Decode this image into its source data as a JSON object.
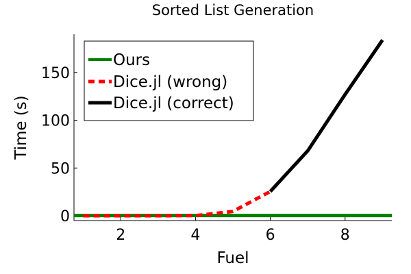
{
  "chart_data": {
    "type": "line",
    "title": "Sorted List Generation",
    "xlabel": "Fuel",
    "ylabel": "Time (s)",
    "xlim": [
      0.75,
      9.25
    ],
    "ylim": [
      -5,
      190
    ],
    "xticks": [
      2,
      4,
      6,
      8
    ],
    "yticks": [
      0,
      50,
      100,
      150
    ],
    "grid": false,
    "legend_position": "top-left",
    "series": [
      {
        "name": "Ours",
        "color": "#008000",
        "style": "solid",
        "x": [
          0.75,
          9.25
        ],
        "y": [
          0.3,
          0.3
        ]
      },
      {
        "name": "Dice.jl (wrong)",
        "color": "#ff0000",
        "style": "dashed",
        "x": [
          1,
          2,
          3,
          4,
          5,
          6
        ],
        "y": [
          0.0,
          0.0,
          0.0,
          0.2,
          4.5,
          25.5
        ]
      },
      {
        "name": "Dice.jl (correct)",
        "color": "#000000",
        "style": "solid",
        "x": [
          6,
          7,
          8,
          9
        ],
        "y": [
          25.5,
          68,
          127,
          184
        ]
      }
    ]
  }
}
